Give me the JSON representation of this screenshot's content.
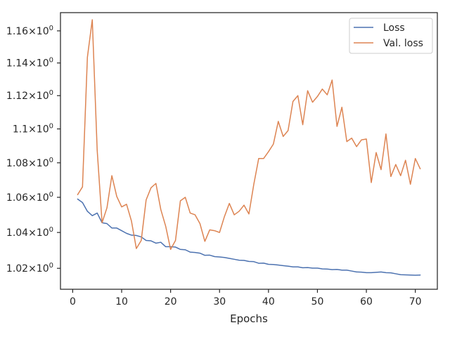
{
  "chart_data": {
    "type": "line",
    "xlabel": "Epochs",
    "ylabel": "",
    "xlim": [
      -2.5,
      74.5
    ],
    "ylim": [
      1.0085,
      1.1715
    ],
    "yscale": "log",
    "xticks": [
      0,
      10,
      20,
      30,
      40,
      50,
      60,
      70
    ],
    "xtick_labels": [
      "0",
      "10",
      "20",
      "30",
      "40",
      "50",
      "60",
      "70"
    ],
    "yticks": [
      1.02,
      1.04,
      1.06,
      1.08,
      1.1,
      1.12,
      1.14,
      1.16
    ],
    "ytick_labels": [
      "1.02",
      "1.04",
      "1.06",
      "1.08",
      "1.1",
      "1.12",
      "1.14",
      "1.16"
    ],
    "ytick_suffix": {
      "times": "×",
      "base": "10",
      "exp": "0"
    },
    "grid": false,
    "legend_position": "top-right",
    "x": [
      1,
      2,
      3,
      4,
      5,
      6,
      7,
      8,
      9,
      10,
      11,
      12,
      13,
      14,
      15,
      16,
      17,
      18,
      19,
      20,
      21,
      22,
      23,
      24,
      25,
      26,
      27,
      28,
      29,
      30,
      31,
      32,
      33,
      34,
      35,
      36,
      37,
      38,
      39,
      40,
      41,
      42,
      43,
      44,
      45,
      46,
      47,
      48,
      49,
      50,
      51,
      52,
      53,
      54,
      55,
      56,
      57,
      58,
      59,
      60,
      61,
      62,
      63,
      64,
      65,
      66,
      67,
      68,
      69,
      70,
      71
    ],
    "series": [
      {
        "name": "Loss",
        "color": "#4c72b0",
        "values": [
          1.059,
          1.057,
          1.052,
          1.0495,
          1.051,
          1.0455,
          1.045,
          1.0425,
          1.0425,
          1.041,
          1.0395,
          1.0385,
          1.0383,
          1.0375,
          1.0355,
          1.0353,
          1.034,
          1.0345,
          1.032,
          1.032,
          1.0318,
          1.0305,
          1.0303,
          1.029,
          1.0288,
          1.0284,
          1.0272,
          1.0273,
          1.0265,
          1.0263,
          1.026,
          1.0255,
          1.025,
          1.0245,
          1.0244,
          1.0238,
          1.0237,
          1.0228,
          1.0229,
          1.0222,
          1.0221,
          1.0218,
          1.0215,
          1.0212,
          1.0208,
          1.0208,
          1.0203,
          1.0204,
          1.0201,
          1.0201,
          1.0197,
          1.0196,
          1.0193,
          1.0194,
          1.019,
          1.019,
          1.0185,
          1.018,
          1.0179,
          1.0176,
          1.0176,
          1.0178,
          1.018,
          1.0176,
          1.0175,
          1.017,
          1.0165,
          1.0164,
          1.0163,
          1.0162,
          1.0163
        ]
      },
      {
        "name": "Val. loss",
        "color": "#dd8452",
        "values": [
          1.0615,
          1.066,
          1.1435,
          1.167,
          1.0875,
          1.0455,
          1.054,
          1.0725,
          1.0605,
          1.0545,
          1.056,
          1.0465,
          1.031,
          1.0355,
          1.0585,
          1.0655,
          1.068,
          1.053,
          1.0435,
          1.0305,
          1.0355,
          1.058,
          1.06,
          1.051,
          1.05,
          1.045,
          1.035,
          1.0415,
          1.041,
          1.04,
          1.049,
          1.0565,
          1.05,
          1.052,
          1.0555,
          1.0505,
          1.0675,
          1.0825,
          1.0825,
          1.0865,
          1.091,
          1.1045,
          1.0955,
          1.099,
          1.1165,
          1.12,
          1.1025,
          1.123,
          1.116,
          1.1195,
          1.124,
          1.1205,
          1.1295,
          1.1015,
          1.113,
          1.0925,
          1.0945,
          1.0895,
          1.0935,
          1.094,
          1.0685,
          1.086,
          1.076,
          1.097,
          1.072,
          1.079,
          1.0725,
          1.0815,
          1.0675,
          1.0825,
          1.0765
        ]
      }
    ]
  }
}
